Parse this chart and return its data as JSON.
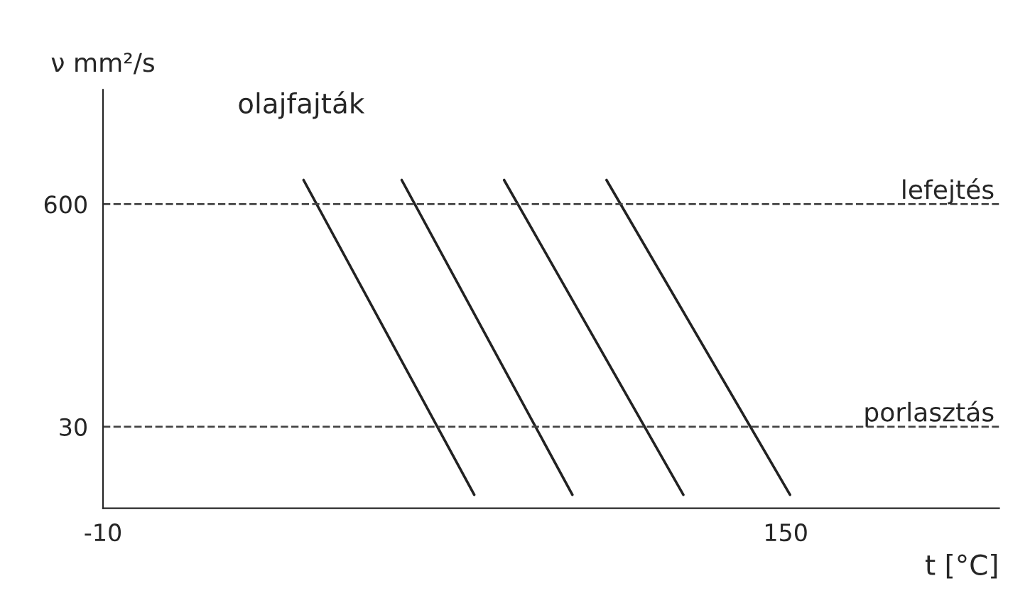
{
  "chart_data": {
    "type": "line",
    "xlabel": "t [°C]",
    "ylabel": "ν mm²/s",
    "log": true,
    "xlim": [
      -10,
      200
    ],
    "xticks": [
      -10,
      150
    ],
    "ylim": [
      10,
      2800
    ],
    "yticks": [
      30,
      600
    ],
    "series": [
      {
        "color": "#222222",
        "x": [
          37,
          77
        ],
        "values": [
          830,
          12
        ]
      },
      {
        "color": "#222222",
        "x": [
          60,
          100
        ],
        "values": [
          830,
          12
        ]
      },
      {
        "color": "#222222",
        "x": [
          84,
          126
        ],
        "values": [
          830,
          12
        ]
      },
      {
        "color": "#222222",
        "x": [
          108,
          151
        ],
        "values": [
          830,
          12
        ]
      }
    ],
    "ref_lines": [
      {
        "axis": "y",
        "value": 600,
        "label": "lefejtés",
        "line_style": "dashed",
        "color": "#444444"
      },
      {
        "axis": "y",
        "value": 30,
        "label": "porlasztás",
        "line_style": "dashed",
        "color": "#444444"
      }
    ],
    "annotations": [
      "olajfajták"
    ],
    "grid": false,
    "line_style": "solid",
    "marker": "none"
  }
}
